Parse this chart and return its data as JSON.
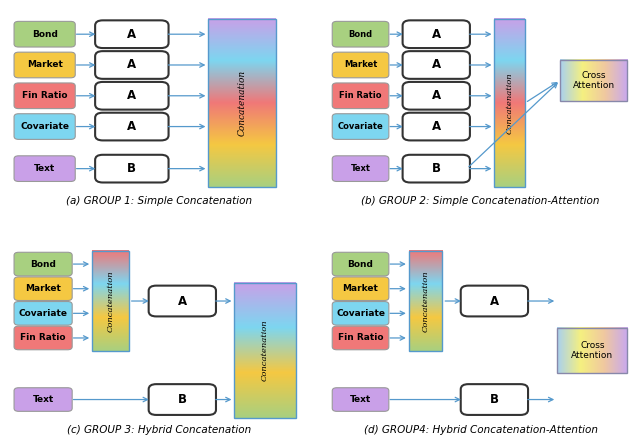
{
  "panels": [
    {
      "label": "(a) GROUP 1: Simple Concatenation"
    },
    {
      "label": "(b) GROUP 2: Simple Concatenation-Attention"
    },
    {
      "label": "(c) GROUP 3: Hybrid Concatenation"
    },
    {
      "label": "(d) GROUP4: Hybrid Concatenation-Attention"
    }
  ],
  "input_labels": [
    "Bond",
    "Market",
    "Fin Ratio",
    "Covariate",
    "Text"
  ],
  "input_colors": [
    "#a8d080",
    "#f5c842",
    "#f07878",
    "#7dd6f0",
    "#c9a0e8"
  ],
  "hybrid_top_labels": [
    "Bond",
    "Market",
    "Covariate",
    "Fin Ratio"
  ],
  "hybrid_top_colors": [
    "#a8d080",
    "#f5c842",
    "#7dd6f0",
    "#f07878"
  ],
  "concat_colors_simple": [
    "#a8d080",
    "#f5c842",
    "#f07878",
    "#7dd6f0",
    "#c9a0e8"
  ],
  "concat_colors_hybrid": [
    "#a8d080",
    "#f5c842",
    "#7dd6f0",
    "#f07878"
  ],
  "concat2_colors": [
    "#a8d080",
    "#f5c842",
    "#7dd6f0",
    "#c9a0e8"
  ],
  "cross_colors": [
    "#a8d0f0",
    "#f5f080",
    "#f0c8a0",
    "#c8a8f0"
  ],
  "bg_color": "#ffffff",
  "arrow_color": "#5599cc"
}
